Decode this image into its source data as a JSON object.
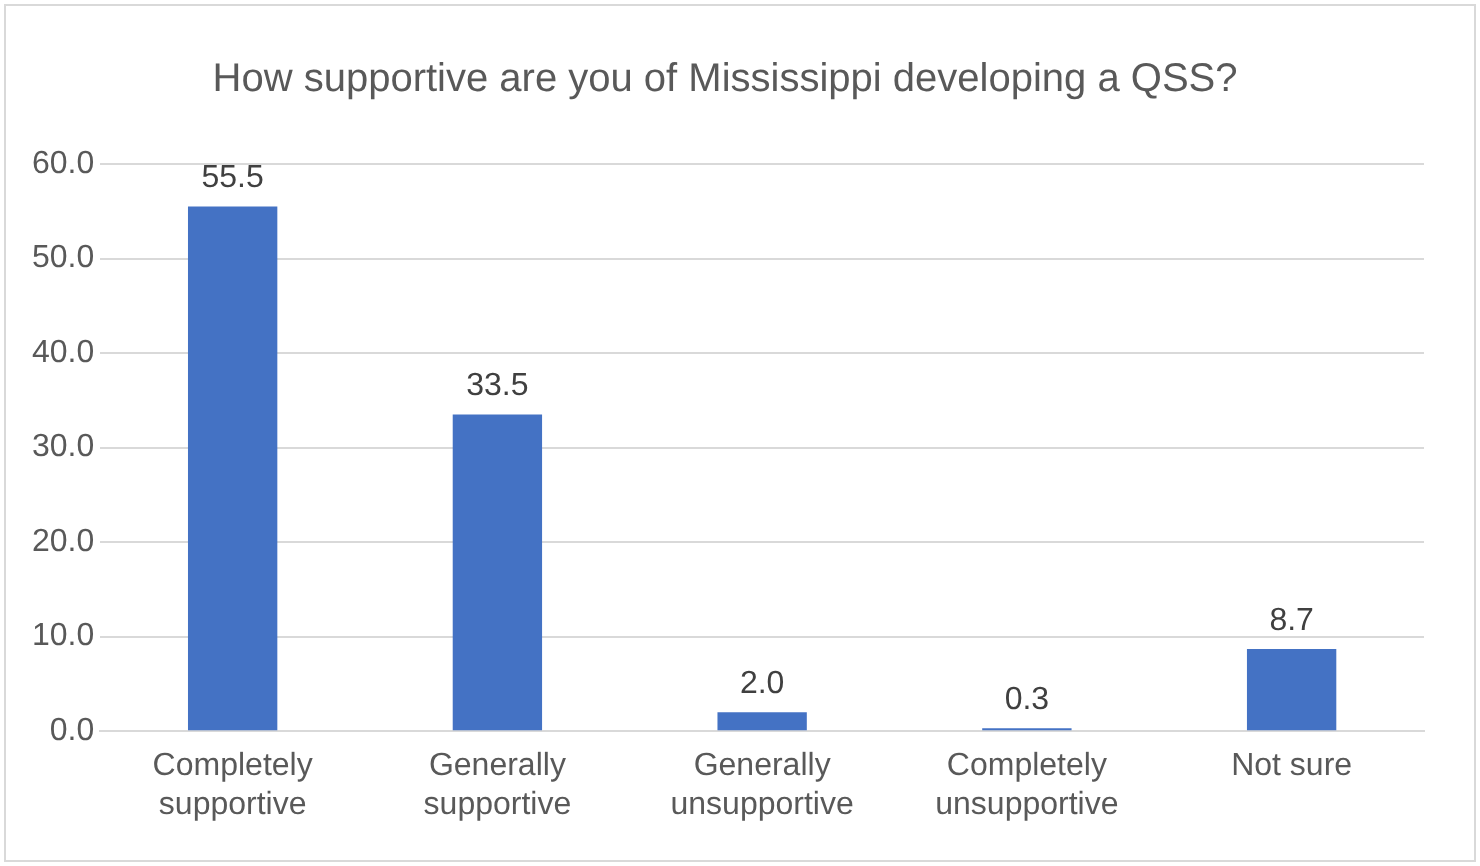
{
  "chart_data": {
    "type": "bar",
    "title": "How supportive are you of Mississippi developing a QSS?",
    "categories": [
      "Completely supportive",
      "Generally supportive",
      "Generally unsupportive",
      "Completely unsupportive",
      "Not sure"
    ],
    "values": [
      55.5,
      33.5,
      2.0,
      0.3,
      8.7
    ],
    "value_labels": [
      "55.5",
      "33.5",
      "2.0",
      "0.3",
      "8.7"
    ],
    "color": "#4472c4",
    "ylim": [
      0,
      60
    ],
    "yticks": [
      {
        "value": 0,
        "label": "0.0"
      },
      {
        "value": 10,
        "label": "10.0"
      },
      {
        "value": 20,
        "label": "20.0"
      },
      {
        "value": 30,
        "label": "30.0"
      },
      {
        "value": 40,
        "label": "40.0"
      },
      {
        "value": 50,
        "label": "50.0"
      },
      {
        "value": 60,
        "label": "60.0"
      }
    ],
    "grid": "y"
  }
}
